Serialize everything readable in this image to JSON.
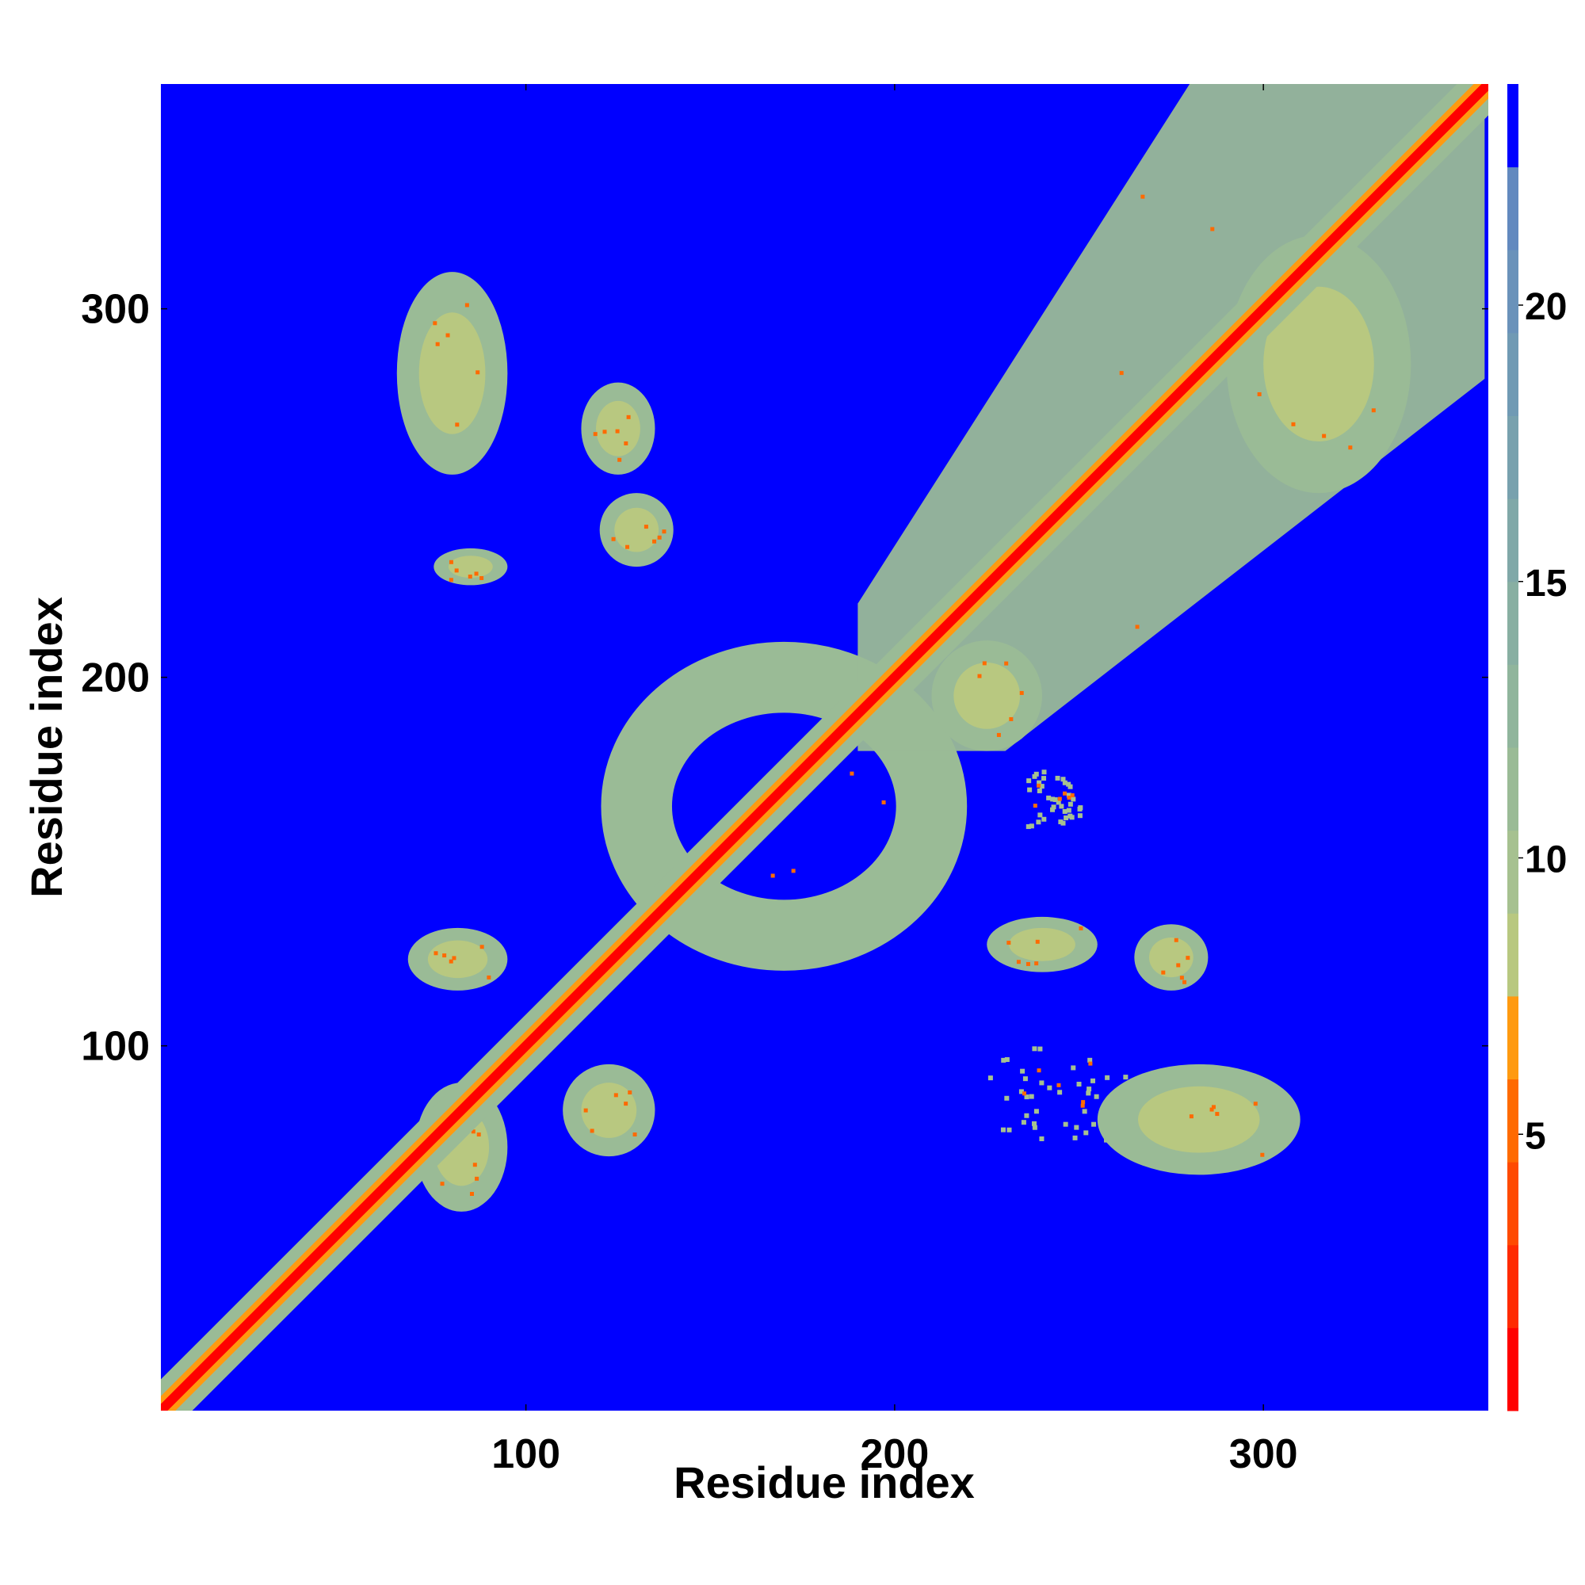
{
  "chart_data": {
    "type": "heatmap",
    "title": "",
    "xlabel": "Residue index",
    "ylabel": "Residue index",
    "xlim": [
      1,
      361
    ],
    "ylim": [
      1,
      361
    ],
    "x_ticks": [
      100,
      200,
      300
    ],
    "y_ticks": [
      100,
      200,
      300
    ],
    "colorbar": {
      "range": [
        0,
        24
      ],
      "ticks": [
        5,
        10,
        15,
        20
      ],
      "levels": [
        {
          "from": 0,
          "to": 1.5,
          "color": "#ff0000"
        },
        {
          "from": 1.5,
          "to": 3,
          "color": "#ff2a00"
        },
        {
          "from": 3,
          "to": 4.5,
          "color": "#ff4a00"
        },
        {
          "from": 4.5,
          "to": 6,
          "color": "#ff6a00"
        },
        {
          "from": 6,
          "to": 7.5,
          "color": "#ff9a10"
        },
        {
          "from": 7.5,
          "to": 9,
          "color": "#b8c880"
        },
        {
          "from": 9,
          "to": 10.5,
          "color": "#a6c190"
        },
        {
          "from": 10.5,
          "to": 12,
          "color": "#9abb96"
        },
        {
          "from": 12,
          "to": 13.5,
          "color": "#90b59c"
        },
        {
          "from": 13.5,
          "to": 15,
          "color": "#88afa2"
        },
        {
          "from": 15,
          "to": 16.5,
          "color": "#80a8a8"
        },
        {
          "from": 16.5,
          "to": 18,
          "color": "#78a1ae"
        },
        {
          "from": 18,
          "to": 19.5,
          "color": "#709ab4"
        },
        {
          "from": 19.5,
          "to": 21,
          "color": "#6a92ba"
        },
        {
          "from": 21,
          "to": 22.5,
          "color": "#6289bf"
        },
        {
          "from": 22.5,
          "to": 24,
          "color": "#0000ff"
        }
      ]
    },
    "background_color": "#0000ff",
    "diagonal": {
      "from": 1,
      "to": 361
    },
    "contact_regions": [
      {
        "x": [
          70,
          95
        ],
        "y": [
          55,
          90
        ],
        "shape": "blob"
      },
      {
        "x": [
          110,
          135
        ],
        "y": [
          70,
          95
        ],
        "shape": "blob"
      },
      {
        "x": [
          68,
          95
        ],
        "y": [
          115,
          132
        ],
        "shape": "blob"
      },
      {
        "x": [
          130,
          210
        ],
        "y": [
          130,
          200
        ],
        "shape": "ring"
      },
      {
        "x": [
          190,
          360
        ],
        "y": [
          180,
          361
        ],
        "shape": "band"
      },
      {
        "x": [
          65,
          95
        ],
        "y": [
          255,
          310
        ],
        "shape": "blob"
      },
      {
        "x": [
          115,
          135
        ],
        "y": [
          255,
          280
        ],
        "shape": "blob"
      },
      {
        "x": [
          120,
          140
        ],
        "y": [
          230,
          250
        ],
        "shape": "blob"
      },
      {
        "x": [
          75,
          95
        ],
        "y": [
          225,
          235
        ],
        "shape": "blob"
      },
      {
        "x": [
          225,
          265
        ],
        "y": [
          75,
          100
        ],
        "shape": "speckle"
      },
      {
        "x": [
          255,
          310
        ],
        "y": [
          65,
          95
        ],
        "shape": "blob"
      },
      {
        "x": [
          225,
          255
        ],
        "y": [
          120,
          135
        ],
        "shape": "blob"
      },
      {
        "x": [
          265,
          285
        ],
        "y": [
          115,
          133
        ],
        "shape": "blob"
      },
      {
        "x": [
          290,
          340
        ],
        "y": [
          250,
          320
        ],
        "shape": "blob"
      },
      {
        "x": [
          235,
          250
        ],
        "y": [
          160,
          175
        ],
        "shape": "speckle"
      },
      {
        "x": [
          210,
          240
        ],
        "y": [
          180,
          210
        ],
        "shape": "blob"
      }
    ]
  }
}
